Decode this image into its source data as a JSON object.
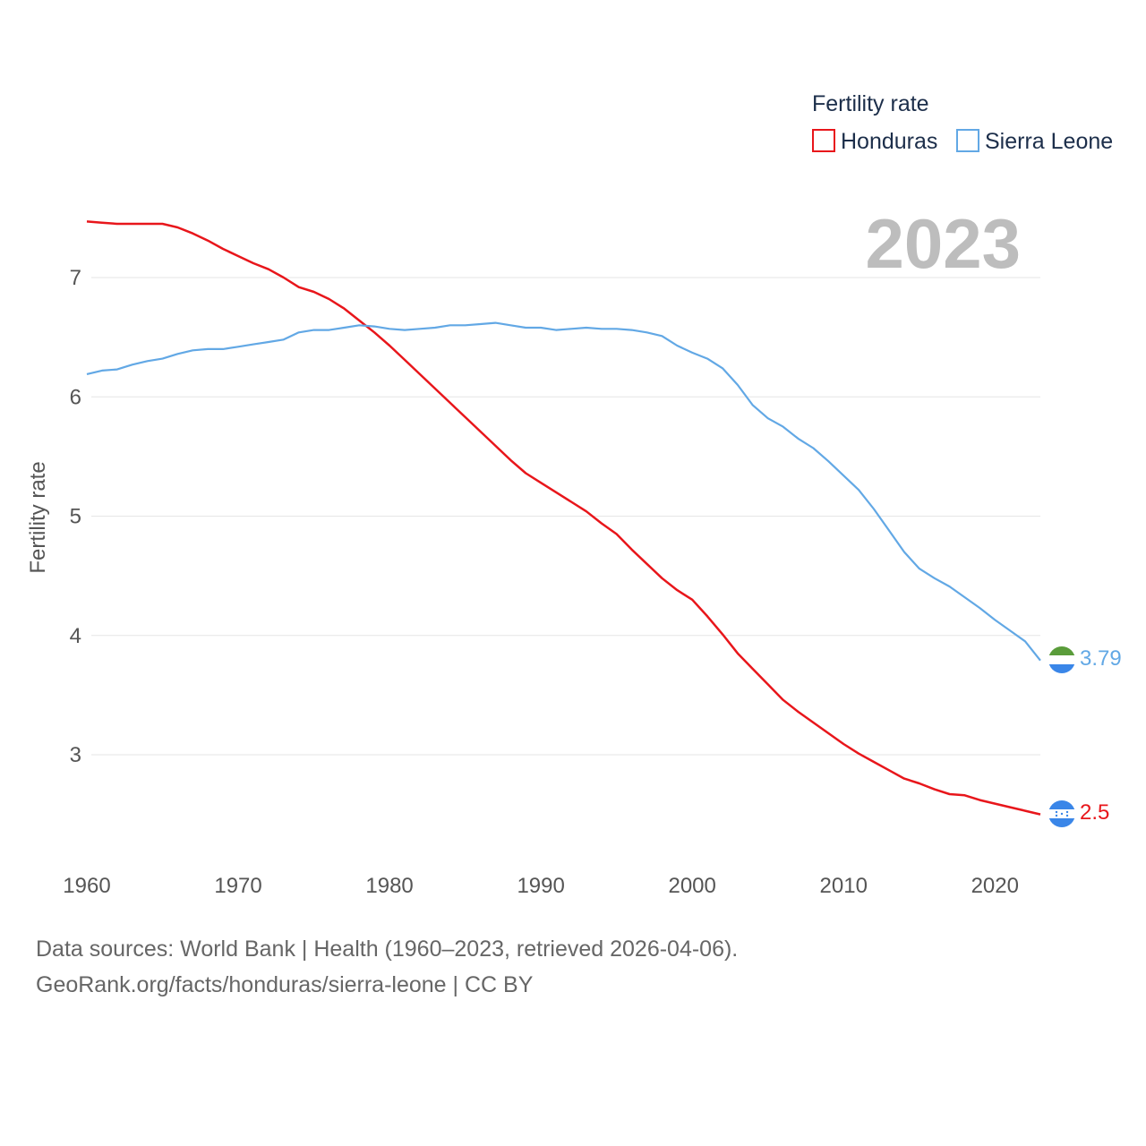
{
  "legend": {
    "title": "Fertility rate",
    "items": [
      {
        "label": "Honduras",
        "color": "#e8161b"
      },
      {
        "label": "Sierra Leone",
        "color": "#62a8e5"
      }
    ]
  },
  "year_label": "2023",
  "end_labels": {
    "honduras": "2.5",
    "sierra_leone": "3.79"
  },
  "footer": {
    "line1": "Data sources: World Bank | Health (1960–2023, retrieved 2026-04-06).",
    "line2": "GeoRank.org/facts/honduras/sierra-leone | CC BY"
  },
  "chart_data": {
    "type": "line",
    "title": "Fertility rate",
    "xlabel": "",
    "ylabel": "Fertility rate",
    "xlim": [
      1960,
      2023
    ],
    "ylim": [
      2.2,
      7.7
    ],
    "x_ticks": [
      1960,
      1970,
      1980,
      1990,
      2000,
      2010,
      2020
    ],
    "y_ticks": [
      3,
      4,
      5,
      6,
      7
    ],
    "grid": true,
    "legend_position": "top-right",
    "x": [
      1960,
      1961,
      1962,
      1963,
      1964,
      1965,
      1966,
      1967,
      1968,
      1969,
      1970,
      1971,
      1972,
      1973,
      1974,
      1975,
      1976,
      1977,
      1978,
      1979,
      1980,
      1981,
      1982,
      1983,
      1984,
      1985,
      1986,
      1987,
      1988,
      1989,
      1990,
      1991,
      1992,
      1993,
      1994,
      1995,
      1996,
      1997,
      1998,
      1999,
      2000,
      2001,
      2002,
      2003,
      2004,
      2005,
      2006,
      2007,
      2008,
      2009,
      2010,
      2011,
      2012,
      2013,
      2014,
      2015,
      2016,
      2017,
      2018,
      2019,
      2020,
      2021,
      2022,
      2023
    ],
    "series": [
      {
        "name": "Honduras",
        "color": "#e8161b",
        "values": [
          7.47,
          7.46,
          7.45,
          7.45,
          7.45,
          7.45,
          7.42,
          7.37,
          7.31,
          7.24,
          7.18,
          7.12,
          7.07,
          7.0,
          6.92,
          6.88,
          6.82,
          6.74,
          6.64,
          6.54,
          6.43,
          6.31,
          6.19,
          6.07,
          5.95,
          5.83,
          5.71,
          5.59,
          5.47,
          5.36,
          5.28,
          5.2,
          5.12,
          5.04,
          4.94,
          4.85,
          4.72,
          4.6,
          4.48,
          4.38,
          4.3,
          4.16,
          4.01,
          3.85,
          3.72,
          3.59,
          3.46,
          3.36,
          3.27,
          3.18,
          3.09,
          3.01,
          2.94,
          2.87,
          2.8,
          2.76,
          2.71,
          2.67,
          2.66,
          2.62,
          2.59,
          2.56,
          2.53,
          2.5
        ]
      },
      {
        "name": "Sierra Leone",
        "color": "#62a8e5",
        "values": [
          6.19,
          6.22,
          6.23,
          6.27,
          6.3,
          6.32,
          6.36,
          6.39,
          6.4,
          6.4,
          6.42,
          6.44,
          6.46,
          6.48,
          6.54,
          6.56,
          6.56,
          6.58,
          6.6,
          6.59,
          6.57,
          6.56,
          6.57,
          6.58,
          6.6,
          6.6,
          6.61,
          6.62,
          6.6,
          6.58,
          6.58,
          6.56,
          6.57,
          6.58,
          6.57,
          6.57,
          6.56,
          6.54,
          6.51,
          6.43,
          6.37,
          6.32,
          6.24,
          6.1,
          5.93,
          5.82,
          5.75,
          5.65,
          5.57,
          5.46,
          5.34,
          5.22,
          5.06,
          4.88,
          4.7,
          4.56,
          4.48,
          4.41,
          4.32,
          4.23,
          4.13,
          4.04,
          3.95,
          3.79
        ]
      }
    ]
  }
}
